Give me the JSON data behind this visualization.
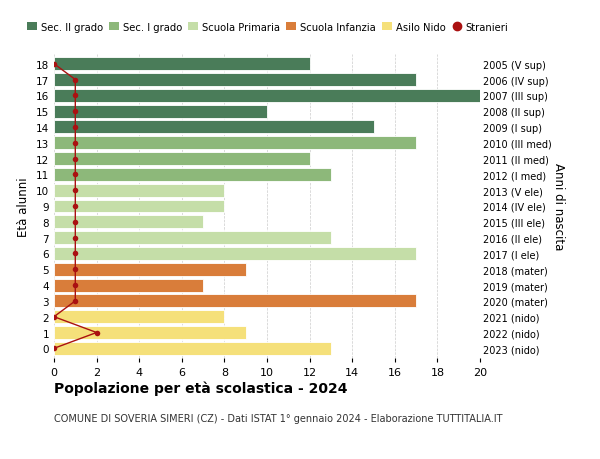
{
  "ages": [
    18,
    17,
    16,
    15,
    14,
    13,
    12,
    11,
    10,
    9,
    8,
    7,
    6,
    5,
    4,
    3,
    2,
    1,
    0
  ],
  "right_labels": [
    "2005 (V sup)",
    "2006 (IV sup)",
    "2007 (III sup)",
    "2008 (II sup)",
    "2009 (I sup)",
    "2010 (III med)",
    "2011 (II med)",
    "2012 (I med)",
    "2013 (V ele)",
    "2014 (IV ele)",
    "2015 (III ele)",
    "2016 (II ele)",
    "2017 (I ele)",
    "2018 (mater)",
    "2019 (mater)",
    "2020 (mater)",
    "2021 (nido)",
    "2022 (nido)",
    "2023 (nido)"
  ],
  "bar_values": [
    12,
    17,
    20,
    10,
    15,
    17,
    12,
    13,
    8,
    8,
    7,
    13,
    17,
    9,
    7,
    17,
    8,
    9,
    13
  ],
  "bar_colors": [
    "#4a7c59",
    "#4a7c59",
    "#4a7c59",
    "#4a7c59",
    "#4a7c59",
    "#8db87a",
    "#8db87a",
    "#8db87a",
    "#c5dea8",
    "#c5dea8",
    "#c5dea8",
    "#c5dea8",
    "#c5dea8",
    "#d97d3a",
    "#d97d3a",
    "#d97d3a",
    "#f5e07a",
    "#f5e07a",
    "#f5e07a"
  ],
  "stranieri_x": [
    0,
    1,
    1,
    1,
    1,
    1,
    1,
    1,
    1,
    1,
    1,
    1,
    1,
    1,
    1,
    1,
    0,
    2,
    0
  ],
  "colors": {
    "sec2": "#4a7c59",
    "sec1": "#8db87a",
    "primaria": "#c5dea8",
    "infanzia": "#d97d3a",
    "nido": "#f5e07a",
    "stranieri": "#aa1111"
  },
  "legend_labels": [
    "Sec. II grado",
    "Sec. I grado",
    "Scuola Primaria",
    "Scuola Infanzia",
    "Asilo Nido",
    "Stranieri"
  ],
  "title": "Popolazione per età scolastica - 2024",
  "subtitle": "COMUNE DI SOVERIA SIMERI (CZ) - Dati ISTAT 1° gennaio 2024 - Elaborazione TUTTITALIA.IT",
  "ylabel": "Età alunni",
  "right_ylabel": "Anni di nascita",
  "xlim": [
    0,
    20
  ],
  "xticks": [
    0,
    2,
    4,
    6,
    8,
    10,
    12,
    14,
    16,
    18,
    20
  ],
  "bg_color": "#ffffff",
  "grid_color": "#cccccc"
}
